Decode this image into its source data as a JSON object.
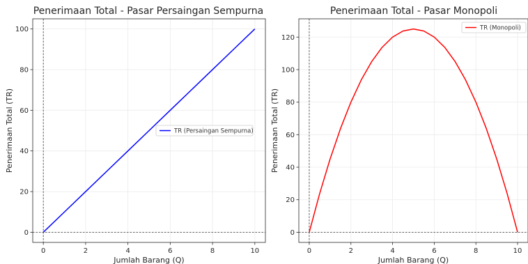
{
  "chart_data": [
    {
      "type": "line",
      "title": "Penerimaan Total - Pasar Persaingan Sempurna",
      "xlabel": "Jumlah Barang (Q)",
      "ylabel": "Penerimaan Total (TR)",
      "xlim": [
        -0.5,
        10.5
      ],
      "ylim": [
        -5,
        105
      ],
      "xticks": [
        0,
        2,
        4,
        6,
        8,
        10
      ],
      "yticks": [
        0,
        20,
        40,
        60,
        80,
        100
      ],
      "grid": true,
      "legend_position": "center-right",
      "reference_lines": {
        "x": 0,
        "y": 0
      },
      "series": [
        {
          "name": "TR (Persaingan Sempurna)",
          "color": "#0000ff",
          "x": [
            0,
            1,
            2,
            3,
            4,
            5,
            6,
            7,
            8,
            9,
            10
          ],
          "y": [
            0,
            10,
            20,
            30,
            40,
            50,
            60,
            70,
            80,
            90,
            100
          ]
        }
      ]
    },
    {
      "type": "line",
      "title": "Penerimaan Total - Pasar Monopoli",
      "xlabel": "Jumlah Barang (Q)",
      "ylabel": "Penerimaan Total (TR)",
      "xlim": [
        -0.5,
        10.5
      ],
      "ylim": [
        -6.25,
        131.25
      ],
      "xticks": [
        0,
        2,
        4,
        6,
        8,
        10
      ],
      "yticks": [
        0,
        20,
        40,
        60,
        80,
        100,
        120
      ],
      "grid": true,
      "legend_position": "top-right",
      "reference_lines": {
        "x": 0,
        "y": 0
      },
      "series": [
        {
          "name": "TR (Monopoli)",
          "color": "#ff0000",
          "x": [
            0,
            0.5,
            1,
            1.5,
            2,
            2.5,
            3,
            3.5,
            4,
            4.5,
            5,
            5.5,
            6,
            6.5,
            7,
            7.5,
            8,
            8.5,
            9,
            9.5,
            10
          ],
          "y": [
            0,
            23.75,
            45,
            63.75,
            80,
            93.75,
            105,
            113.75,
            120,
            123.75,
            125,
            123.75,
            120,
            113.75,
            105,
            93.75,
            80,
            63.75,
            45,
            23.75,
            0
          ]
        }
      ]
    }
  ]
}
